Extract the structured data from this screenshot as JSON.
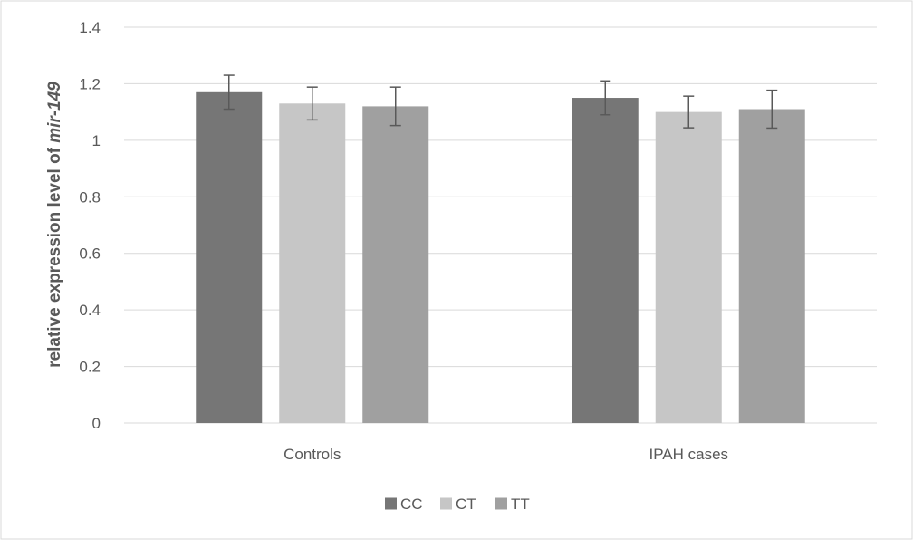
{
  "chart_data": {
    "type": "bar",
    "title": "",
    "xlabel": "",
    "ylabel_prefix": "relative expression level of ",
    "ylabel_italic": "mir-149",
    "categories": [
      "Controls",
      "IPAH cases"
    ],
    "series": [
      {
        "name": "CC",
        "values": [
          1.17,
          1.15
        ],
        "errors": [
          0.06,
          0.06
        ],
        "color": "#767676"
      },
      {
        "name": "CT",
        "values": [
          1.13,
          1.1
        ],
        "errors": [
          0.058,
          0.056
        ],
        "color": "#c6c6c6"
      },
      {
        "name": "TT",
        "values": [
          1.12,
          1.11
        ],
        "errors": [
          0.068,
          0.067
        ],
        "color": "#a0a0a0"
      }
    ],
    "ylim": [
      0,
      1.4
    ],
    "yticks": [
      "0",
      "0.2",
      "0.4",
      "0.6",
      "0.8",
      "1",
      "1.2",
      "1.4"
    ],
    "grid": true,
    "legend_position": "bottom"
  }
}
